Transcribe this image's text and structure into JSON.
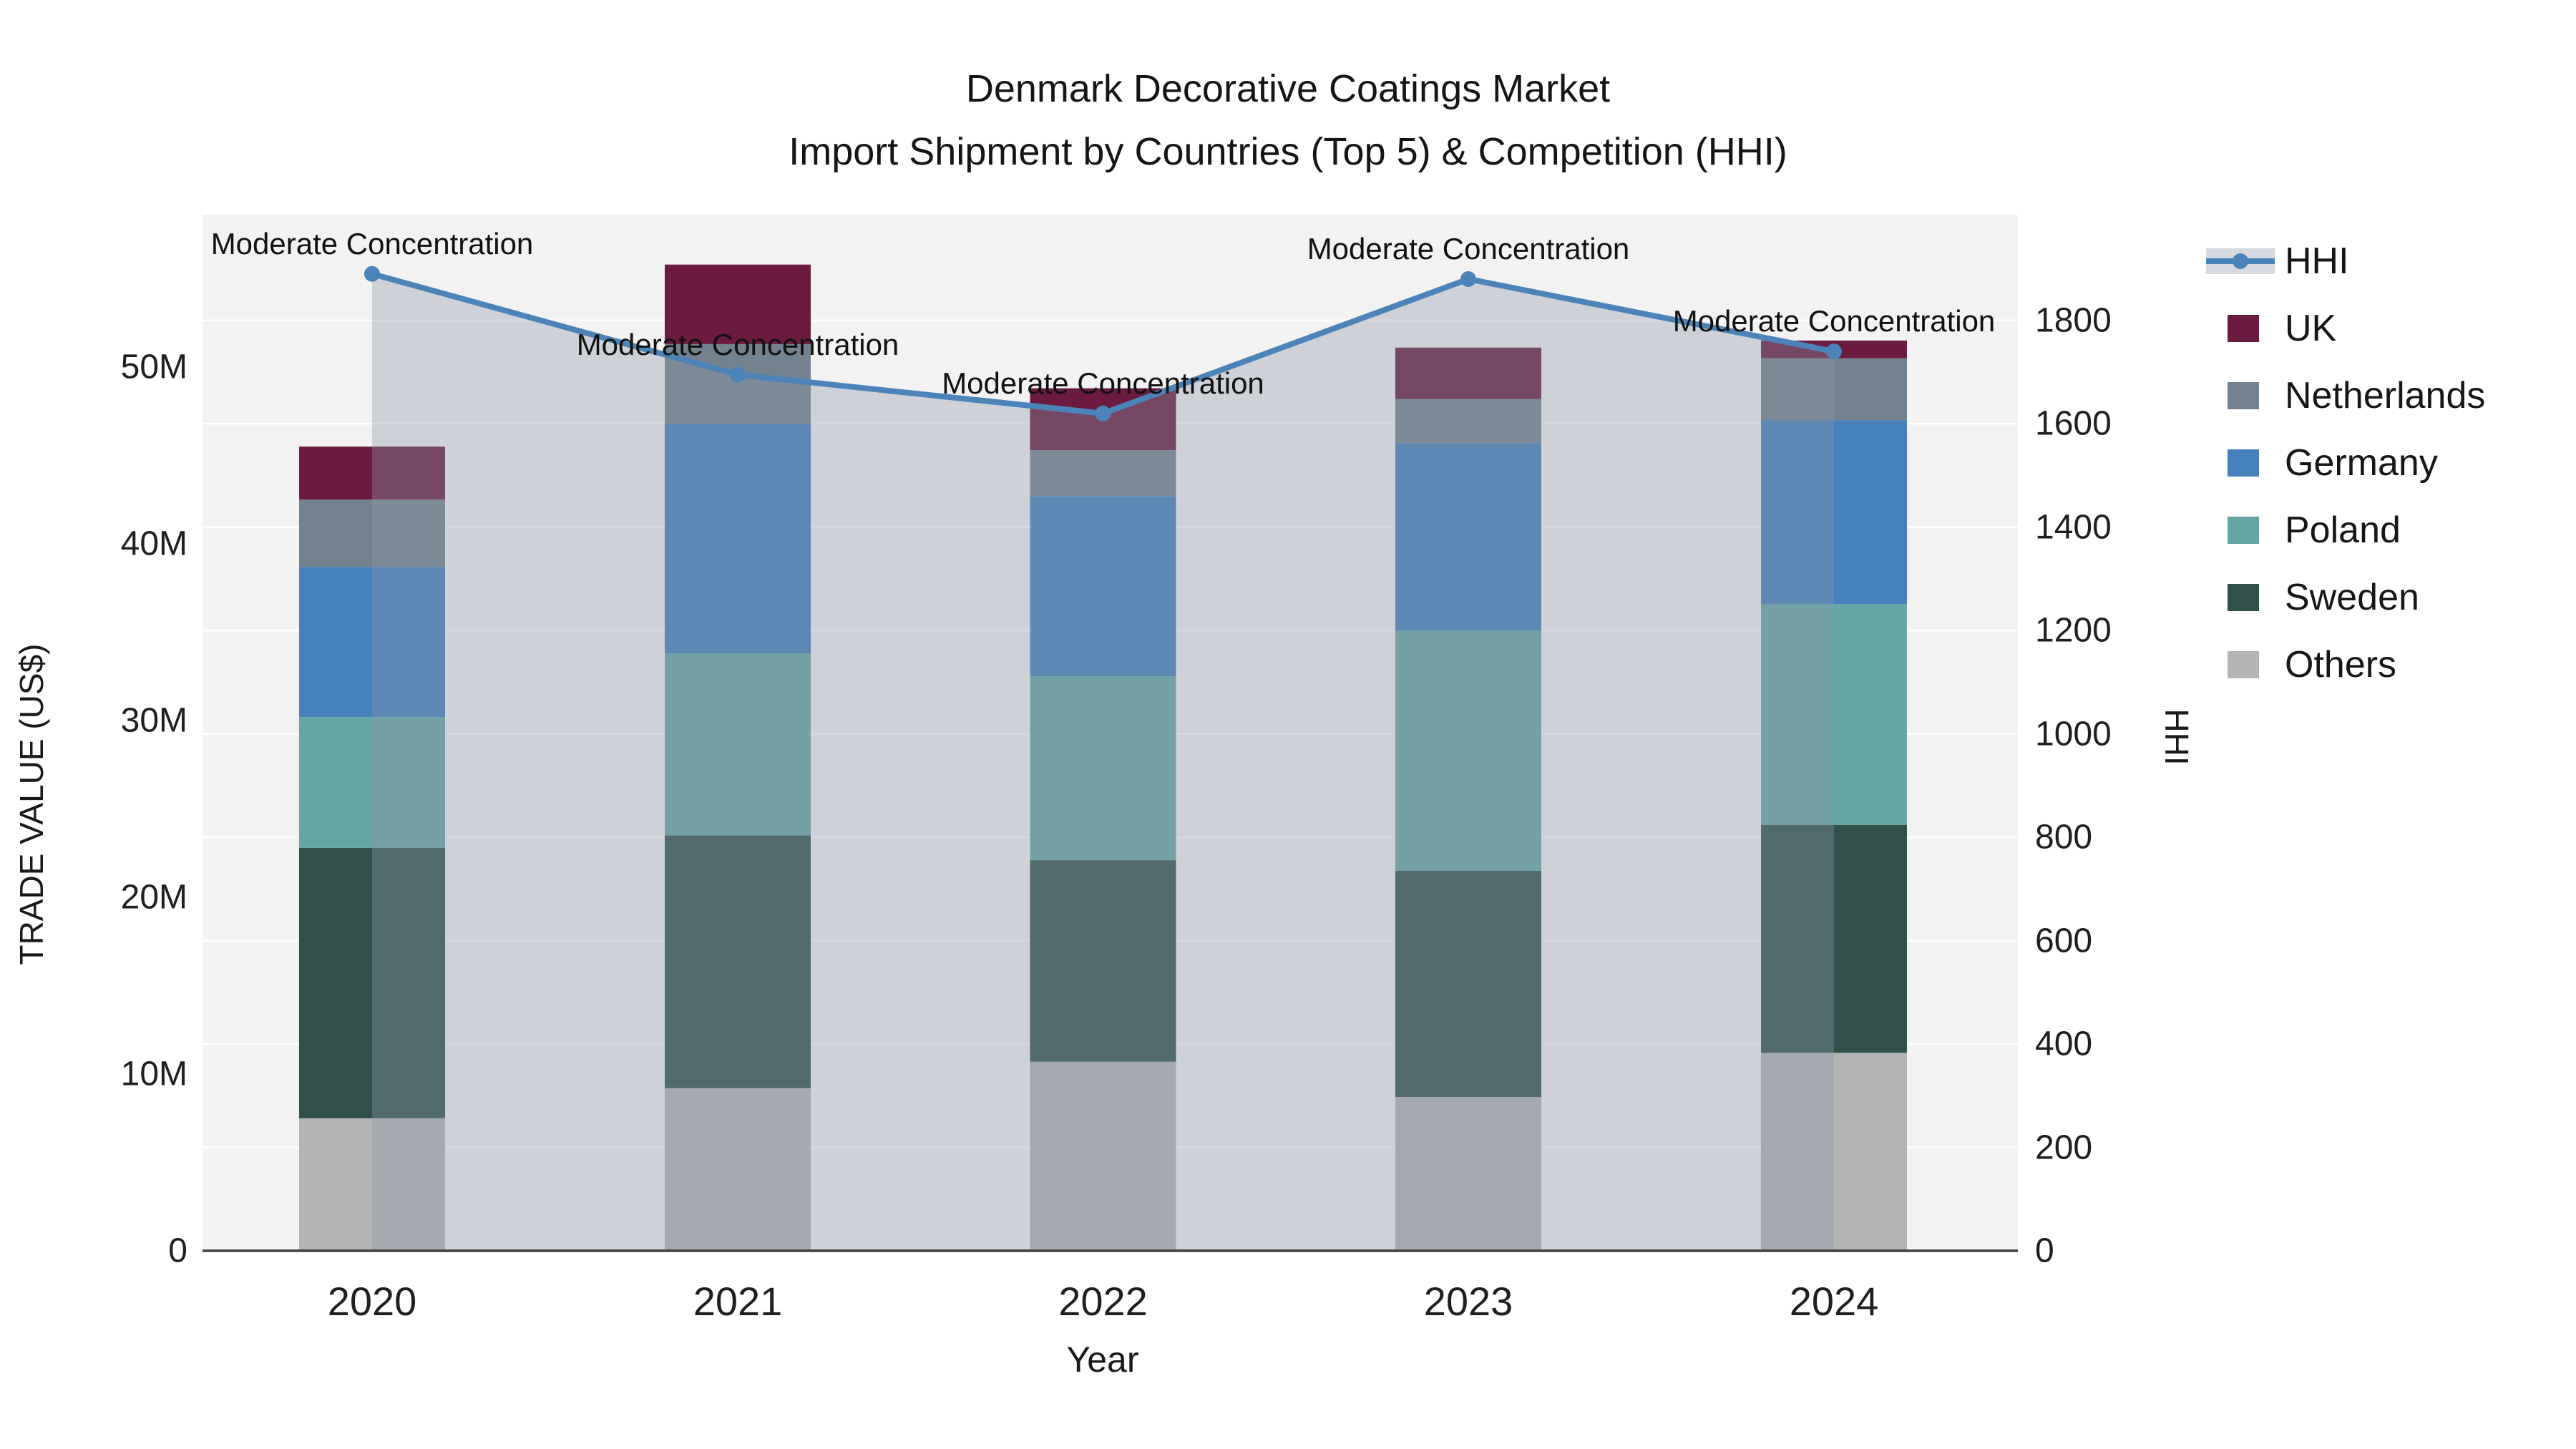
{
  "title": {
    "line1": "Denmark Decorative Coatings Market",
    "line2": "Import Shipment by Countries (Top 5) & Competition (HHI)"
  },
  "axes": {
    "left": {
      "title": "TRADE VALUE (US$)",
      "ticks": [
        "0",
        "10M",
        "20M",
        "30M",
        "40M",
        "50M"
      ],
      "tick_values": [
        0,
        10,
        20,
        30,
        40,
        50
      ]
    },
    "right": {
      "title": "HHI",
      "ticks": [
        "0",
        "200",
        "400",
        "600",
        "800",
        "1000",
        "1200",
        "1400",
        "1600",
        "1800"
      ],
      "tick_values": [
        0,
        200,
        400,
        600,
        800,
        1000,
        1200,
        1400,
        1600,
        1800
      ]
    },
    "x": {
      "title": "Year",
      "ticks": [
        "2020",
        "2021",
        "2022",
        "2023",
        "2024"
      ]
    }
  },
  "legend": {
    "items": [
      {
        "label": "HHI",
        "type": "line",
        "color": "#4a84b8"
      },
      {
        "label": "UK",
        "type": "swatch",
        "color": "#6b1a40"
      },
      {
        "label": "Netherlands",
        "type": "swatch",
        "color": "#74828f"
      },
      {
        "label": "Germany",
        "type": "swatch",
        "color": "#4681bc"
      },
      {
        "label": "Poland",
        "type": "swatch",
        "color": "#66a6a4"
      },
      {
        "label": "Sweden",
        "type": "swatch",
        "color": "#30504a"
      },
      {
        "label": "Others",
        "type": "swatch",
        "color": "#b3b5b4"
      }
    ]
  },
  "annotation_text": "Moderate Concentration",
  "colors": {
    "hhi_line": "#4a84b8",
    "hhi_area_fill": "rgba(140,152,170,0.36)",
    "plot_background": "#f2f2f3",
    "gridline": "#ffffff",
    "axis_line": "#3f3f3f"
  },
  "chart_data": {
    "type": "bar",
    "subtype": "stacked-bars-with-secondary-axis-line",
    "title": "Denmark Decorative Coatings Market Import Shipment by Countries (Top 5) & Competition (HHI)",
    "xlabel": "Year",
    "ylabel": "TRADE VALUE (US$)",
    "ylabel_right": "HHI",
    "unit": "million US$",
    "categories": [
      "2020",
      "2021",
      "2022",
      "2023",
      "2024"
    ],
    "stack_order_bottom_to_top": [
      "Others",
      "Sweden",
      "Poland",
      "Germany",
      "Netherlands",
      "UK"
    ],
    "series": [
      {
        "name": "Others",
        "color": "#b3b5b4",
        "values": [
          7.5,
          9.2,
          10.7,
          8.7,
          11.2
        ]
      },
      {
        "name": "Sweden",
        "color": "#30504a",
        "values": [
          15.3,
          14.3,
          11.4,
          12.8,
          12.9
        ]
      },
      {
        "name": "Poland",
        "color": "#66a6a4",
        "values": [
          7.4,
          10.3,
          10.4,
          13.6,
          12.5
        ]
      },
      {
        "name": "Germany",
        "color": "#4681bc",
        "values": [
          8.5,
          13.0,
          10.2,
          10.6,
          10.4
        ]
      },
      {
        "name": "Netherlands",
        "color": "#74828f",
        "values": [
          3.8,
          4.5,
          2.6,
          2.5,
          3.5
        ]
      },
      {
        "name": "UK",
        "color": "#6b1a40",
        "values": [
          3.0,
          4.5,
          3.5,
          2.9,
          1.0
        ]
      }
    ],
    "bar_totals": [
      45.5,
      55.8,
      48.8,
      51.1,
      51.5
    ],
    "line_series": {
      "name": "HHI",
      "axis": "right",
      "color": "#4a84b8",
      "style": "line+markers+area-fill-to-zero",
      "values": [
        1890,
        1695,
        1620,
        1880,
        1740
      ],
      "point_annotations": [
        "Moderate Concentration",
        "Moderate Concentration",
        "Moderate Concentration",
        "Moderate Concentration",
        "Moderate Concentration"
      ]
    },
    "ylim": [
      0,
      58.6
    ],
    "ylim_right": [
      0,
      2004
    ],
    "grid": "horizontal gridlines every 200 HHI",
    "legend_position": "right-outside"
  }
}
